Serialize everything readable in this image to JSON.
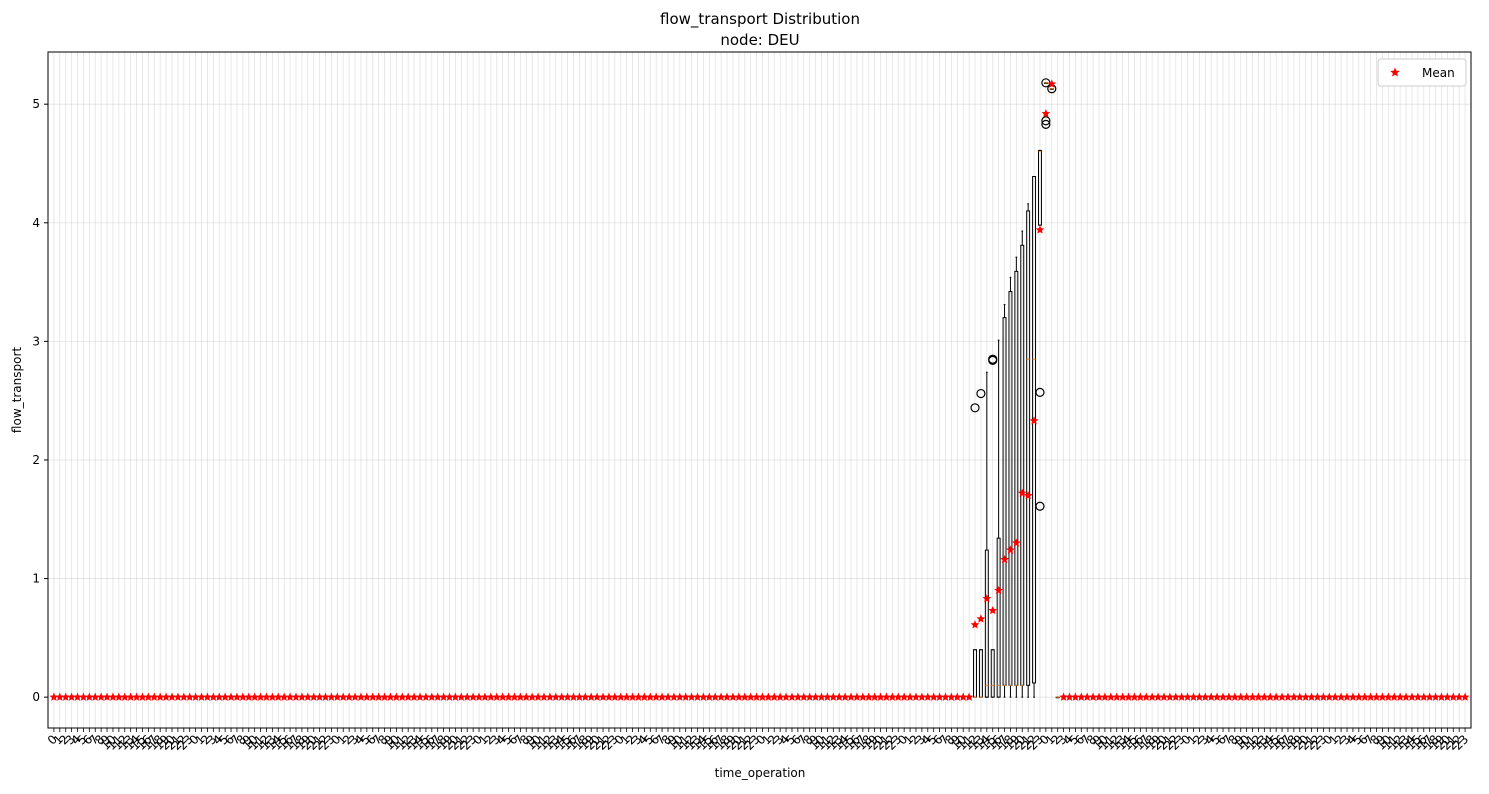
{
  "chart_data": {
    "type": "box",
    "title": "flow_transport Distribution",
    "subtitle": "node: DEU",
    "xlabel": "time_operation",
    "ylabel": "flow_transport",
    "ylim": [
      -0.26,
      5.44
    ],
    "yticks": [
      0,
      1,
      2,
      3,
      4,
      5
    ],
    "grid": true,
    "legend": {
      "position": "top-right",
      "entries": [
        {
          "label": "Mean",
          "marker": "star",
          "color": "#ff0000"
        }
      ]
    },
    "xtick_labels": [
      "0",
      "1",
      "2",
      "3",
      "4",
      "5",
      "6",
      "7",
      "8",
      "9",
      "10",
      "11",
      "12",
      "13",
      "14",
      "15",
      "16",
      "17",
      "18",
      "19",
      "20",
      "21",
      "22",
      "23",
      "0",
      "1",
      "2",
      "3",
      "4",
      "5",
      "6",
      "7",
      "8",
      "9",
      "10",
      "11",
      "12",
      "13",
      "14",
      "15",
      "16",
      "17",
      "18",
      "19",
      "20",
      "21",
      "22",
      "23",
      "0",
      "1",
      "2",
      "3",
      "4",
      "5",
      "6",
      "7",
      "8",
      "9",
      "10",
      "11",
      "12",
      "13",
      "14",
      "15",
      "16",
      "17",
      "18",
      "19",
      "20",
      "21",
      "22",
      "23",
      "0",
      "1",
      "2",
      "3",
      "4",
      "5",
      "6",
      "7",
      "8",
      "9",
      "10",
      "11",
      "12",
      "13",
      "14",
      "15",
      "16",
      "17",
      "18",
      "19",
      "20",
      "21",
      "22",
      "23",
      "0",
      "1",
      "2",
      "3",
      "4",
      "5",
      "6",
      "7",
      "8",
      "9",
      "10",
      "11",
      "12",
      "13",
      "14",
      "15",
      "16",
      "17",
      "18",
      "19",
      "20",
      "21",
      "22",
      "23",
      "0",
      "1",
      "2",
      "3",
      "4",
      "5",
      "6",
      "7",
      "8",
      "9",
      "10",
      "11",
      "12",
      "13",
      "14",
      "15",
      "16",
      "17",
      "18",
      "19",
      "20",
      "21",
      "22",
      "23",
      "0",
      "1",
      "2",
      "3",
      "4",
      "5",
      "6",
      "7",
      "8",
      "9",
      "10",
      "11",
      "12",
      "13",
      "14",
      "15",
      "16",
      "17",
      "18",
      "19",
      "20",
      "21",
      "22",
      "23",
      "0",
      "1",
      "2",
      "3",
      "4",
      "5",
      "6",
      "7",
      "8",
      "9",
      "10",
      "11",
      "12",
      "13",
      "14",
      "15",
      "16",
      "17",
      "18",
      "19",
      "20",
      "21",
      "22",
      "23",
      "0",
      "1",
      "2",
      "3",
      "4",
      "5",
      "6",
      "7",
      "8",
      "9",
      "10",
      "11",
      "12",
      "13",
      "14",
      "15",
      "16",
      "17",
      "18",
      "19",
      "20",
      "21",
      "22",
      "23",
      "0",
      "1",
      "2",
      "3",
      "4",
      "5",
      "6",
      "7",
      "8",
      "9",
      "10",
      "11",
      "12",
      "13",
      "14",
      "15",
      "16",
      "17",
      "18",
      "19",
      "20",
      "21",
      "22",
      "23"
    ],
    "default_box": {
      "whislo": 0,
      "q1": 0,
      "med": 0,
      "q3": 0,
      "whishi": 0,
      "mean": 0,
      "fliers": []
    },
    "boxes": [
      {
        "index": 156,
        "whislo": 0,
        "q1": 0,
        "med": 0,
        "q3": 0.4,
        "whishi": 0.4,
        "mean": 0.61,
        "fliers": [
          2.44
        ]
      },
      {
        "index": 157,
        "whislo": 0,
        "q1": 0,
        "med": 0,
        "q3": 0.4,
        "whishi": 0.4,
        "mean": 0.66,
        "fliers": [
          2.56
        ]
      },
      {
        "index": 158,
        "whislo": 0,
        "q1": 0,
        "med": 0.1,
        "q3": 1.24,
        "whishi": 2.74,
        "mean": 0.83,
        "fliers": []
      },
      {
        "index": 159,
        "whislo": 0,
        "q1": 0,
        "med": 0.1,
        "q3": 0.4,
        "whishi": 0.4,
        "mean": 0.73,
        "fliers": [
          2.84,
          2.85
        ]
      },
      {
        "index": 160,
        "whislo": 0,
        "q1": 0,
        "med": 0.1,
        "q3": 1.34,
        "whishi": 3.01,
        "mean": 0.9,
        "fliers": []
      },
      {
        "index": 161,
        "whislo": 0,
        "q1": 0.1,
        "med": 0.1,
        "q3": 3.2,
        "whishi": 3.31,
        "mean": 1.16,
        "fliers": []
      },
      {
        "index": 162,
        "whislo": 0,
        "q1": 0.1,
        "med": 0.1,
        "q3": 3.42,
        "whishi": 3.54,
        "mean": 1.24,
        "fliers": []
      },
      {
        "index": 163,
        "whislo": 0,
        "q1": 0.1,
        "med": 0.1,
        "q3": 3.59,
        "whishi": 3.71,
        "mean": 1.3,
        "fliers": []
      },
      {
        "index": 164,
        "whislo": 0,
        "q1": 0.1,
        "med": 0.1,
        "q3": 3.81,
        "whishi": 3.93,
        "mean": 1.72,
        "fliers": []
      },
      {
        "index": 165,
        "whislo": 0,
        "q1": 0.1,
        "med": 2.85,
        "q3": 4.1,
        "whishi": 4.16,
        "mean": 1.7,
        "fliers": []
      },
      {
        "index": 166,
        "whislo": 0,
        "q1": 0.12,
        "med": 2.85,
        "q3": 4.39,
        "whishi": 4.39,
        "mean": 2.33,
        "fliers": []
      },
      {
        "index": 167,
        "whislo": 3.98,
        "q1": 3.98,
        "med": 4.6,
        "q3": 4.61,
        "whishi": 4.61,
        "mean": 3.94,
        "fliers": [
          1.61,
          2.57
        ]
      },
      {
        "index": 168,
        "whislo": 5.18,
        "q1": 5.18,
        "med": 5.18,
        "q3": 5.18,
        "whishi": 5.18,
        "mean": 4.92,
        "fliers": [
          4.83,
          4.86,
          5.18
        ]
      },
      {
        "index": 169,
        "whislo": 5.13,
        "q1": 5.13,
        "med": 5.13,
        "q3": 5.13,
        "whishi": 5.13,
        "mean": 5.17,
        "fliers": [
          5.13
        ]
      },
      {
        "index": 170,
        "whislo": 0,
        "q1": 0,
        "med": 0,
        "q3": 0,
        "whishi": 0,
        "mean": null,
        "fliers": []
      }
    ],
    "colors": {
      "mean": "#ff0000",
      "box": "#000000",
      "median": "#ff7f0e",
      "grid": "#b0b0b0"
    }
  }
}
